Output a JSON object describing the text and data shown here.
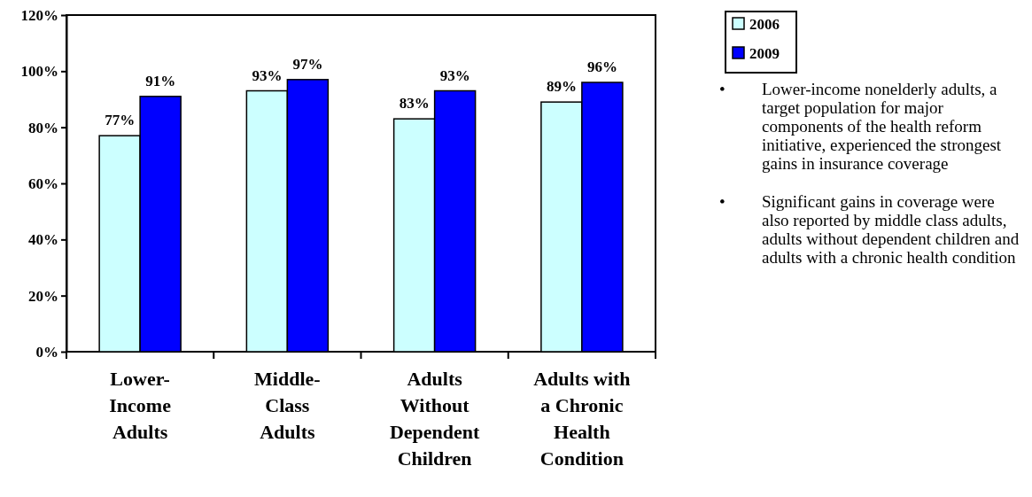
{
  "chart_data": {
    "type": "bar",
    "categories": [
      "Lower-Income Adults",
      "Middle-Class Adults",
      "Adults Without Dependent Children",
      "Adults with a Chronic Health Condition"
    ],
    "series": [
      {
        "name": "2006",
        "color": "#ccffff",
        "values": [
          77,
          93,
          83,
          89
        ],
        "value_labels": [
          "77%",
          "93%",
          "83%",
          "89%"
        ]
      },
      {
        "name": "2009",
        "color": "#0000ff",
        "values": [
          91,
          97,
          93,
          96
        ],
        "value_labels": [
          "91%",
          "97%",
          "93%",
          "96%"
        ]
      }
    ],
    "ylim": [
      0,
      120
    ],
    "yticks": [
      {
        "value": 0,
        "label": "0%"
      },
      {
        "value": 20,
        "label": "20%"
      },
      {
        "value": 40,
        "label": "40%"
      },
      {
        "value": 60,
        "label": "60%"
      },
      {
        "value": 80,
        "label": "80%"
      },
      {
        "value": 100,
        "label": "100%"
      },
      {
        "value": 120,
        "label": "120%"
      }
    ],
    "grid": false,
    "legend": "top right",
    "annotations": [
      "•\tLower-income nonelderly adults, a target population for major components of the health reform initiative, experienced the strongest gains in insurance coverage",
      "•\tSignificant gains in coverage were also reported by middle class adults, adults without dependent children and adults with a chronic health condition"
    ]
  }
}
